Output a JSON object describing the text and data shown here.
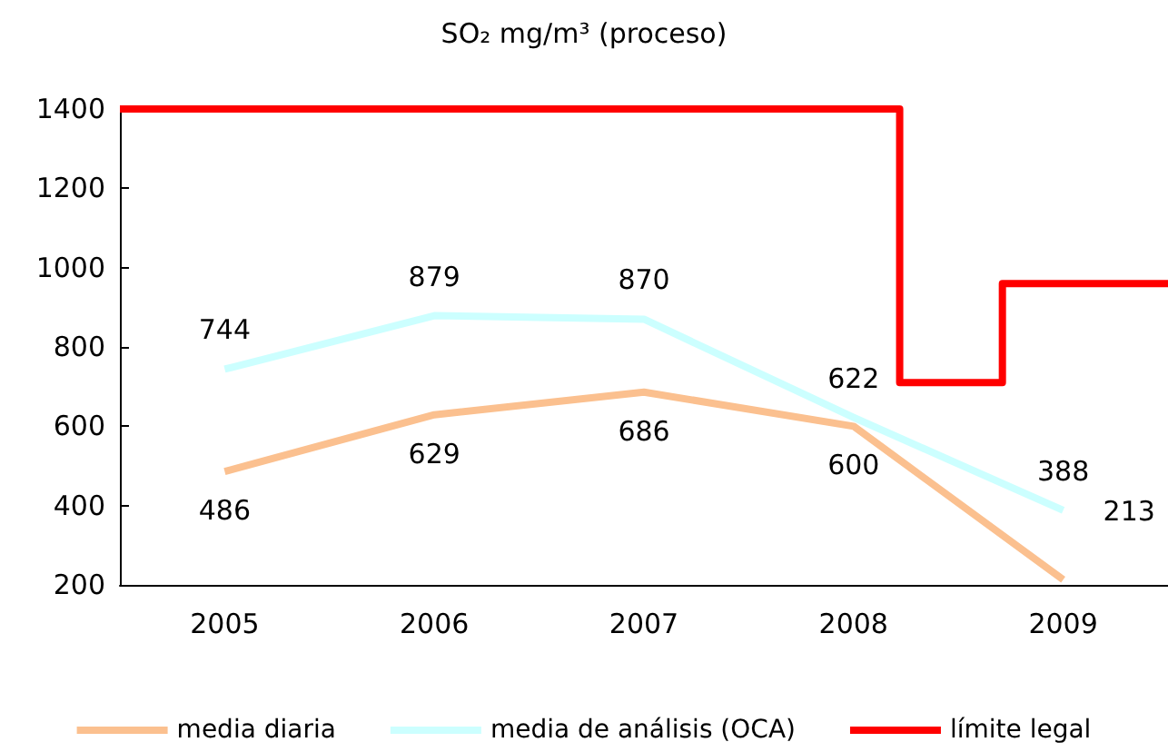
{
  "chart_data": {
    "type": "line",
    "title": "SO₂ mg/m³ (proceso)",
    "x": [
      2005,
      2006,
      2007,
      2008,
      2009
    ],
    "xlim": [
      2004.5,
      2009.5
    ],
    "xticks": [
      2005,
      2006,
      2007,
      2008,
      2009
    ],
    "ylim": [
      200,
      1400
    ],
    "yticks": [
      200,
      400,
      600,
      800,
      1000,
      1200,
      1400
    ],
    "grid": false,
    "legend": "bottom",
    "marker": "none",
    "line_style": "solid",
    "series": [
      {
        "name": "media diaria",
        "color": "#fbc08f",
        "values": [
          486,
          629,
          686,
          600,
          213
        ],
        "value_labels": [
          "486",
          "629",
          "686",
          "600",
          "213"
        ]
      },
      {
        "name": "media de análisis (OCA)",
        "color": "#ccffff",
        "values": [
          744,
          879,
          870,
          622,
          388
        ],
        "value_labels": [
          "744",
          "879",
          "870",
          "622",
          "388"
        ]
      },
      {
        "name": "límite legal",
        "color": "#ff0000",
        "x": [
          2004.5,
          2008.22,
          2008.22,
          2008.71,
          2008.71,
          2009.5
        ],
        "values": [
          1400,
          1400,
          710,
          710,
          960,
          960
        ]
      }
    ]
  }
}
